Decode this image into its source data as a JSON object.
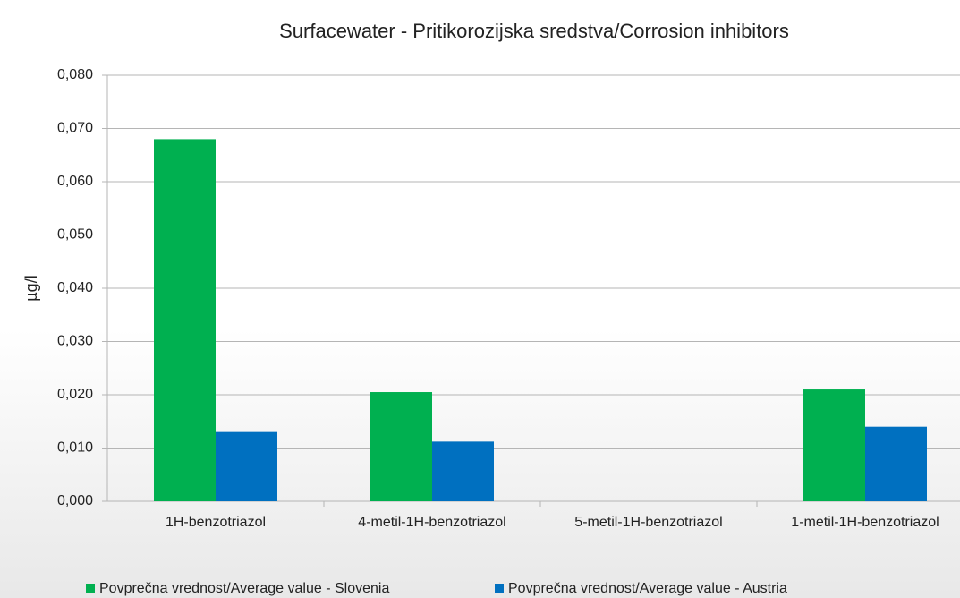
{
  "chart_data": {
    "type": "bar",
    "title": "Surfacewater - Pritikorozijska sredstva/Corrosion inhibitors",
    "y_label": "µg/l",
    "categories": [
      "1H-benzotriazol",
      "4-metil-1H-benzotriazol",
      "5-metil-1H-benzotriazol",
      "1-metil-1H-benzotriazol"
    ],
    "series": [
      {
        "name": "Povprečna vrednost/Average value - Slovenia",
        "color": "#00b050",
        "values": [
          0.068,
          0.0205,
          null,
          0.021
        ]
      },
      {
        "name": "Povprečna vrednost/Average value - Austria",
        "color": "#0070c0",
        "values": [
          0.013,
          0.0112,
          null,
          0.014
        ]
      }
    ],
    "ylim": [
      0,
      0.08
    ],
    "yticks": [
      {
        "value": 0,
        "label": "0,000"
      },
      {
        "value": 0.01,
        "label": "0,010"
      },
      {
        "value": 0.02,
        "label": "0,020"
      },
      {
        "value": 0.03,
        "label": "0,030"
      },
      {
        "value": 0.04,
        "label": "0,040"
      },
      {
        "value": 0.05,
        "label": "0,050"
      },
      {
        "value": 0.06,
        "label": "0,060"
      },
      {
        "value": 0.07,
        "label": "0,070"
      },
      {
        "value": 0.08,
        "label": "0,080"
      }
    ],
    "grid": true,
    "legend": "bottom"
  }
}
